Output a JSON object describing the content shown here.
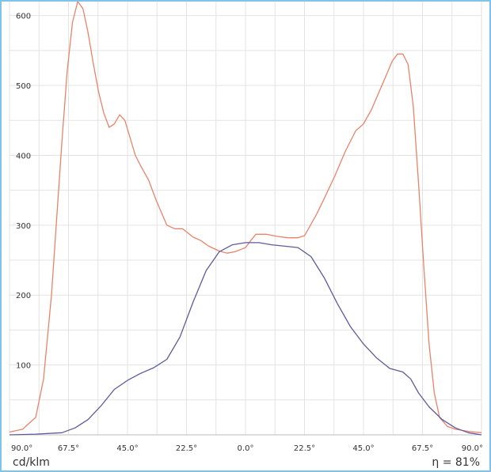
{
  "unit_label": "cd/klm",
  "efficiency_label": "η = 81%",
  "colors": {
    "grid": "#e3e3e3",
    "c0_c180": "#e8836a",
    "c90_c270": "#5f5a99",
    "frame": "#7ec3e8"
  },
  "chart_data": {
    "type": "line",
    "title": "",
    "xlabel": "",
    "ylabel": "cd/klm",
    "xlim": [
      -90,
      90
    ],
    "ylim": [
      0,
      620
    ],
    "grid": true,
    "legend": "none",
    "x_tick_labels": [
      "90.0°",
      "67.5°",
      "45.0°",
      "22.5°",
      "0.0°",
      "22.5°",
      "45.0°",
      "67.5°",
      "90.0°"
    ],
    "y_ticks": [
      100,
      200,
      300,
      400,
      500,
      600
    ],
    "series": [
      {
        "color": "#e8836a",
        "x": [
          -90,
          -85,
          -80,
          -77,
          -74,
          -72,
          -70,
          -68,
          -66,
          -64,
          -62,
          -60,
          -58,
          -56,
          -54,
          -52,
          -50,
          -48,
          -46,
          -44,
          -42,
          -40,
          -37,
          -34,
          -30,
          -27,
          -24,
          -20,
          -17,
          -14,
          -10,
          -7,
          -4,
          -2,
          0,
          2,
          4,
          8,
          12,
          16,
          20,
          22.5,
          24,
          27,
          30,
          34,
          38,
          42,
          45,
          48,
          52,
          56,
          58,
          60,
          62,
          64,
          66,
          68,
          70,
          72,
          74,
          77,
          80,
          85,
          90
        ],
        "values": [
          4,
          8,
          25,
          80,
          200,
          310,
          420,
          520,
          590,
          620,
          610,
          575,
          530,
          490,
          460,
          440,
          445,
          458,
          450,
          425,
          400,
          385,
          365,
          335,
          300,
          295,
          295,
          283,
          278,
          270,
          263,
          260,
          262,
          265,
          268,
          278,
          287,
          287,
          284,
          282,
          282,
          285,
          295,
          315,
          338,
          370,
          405,
          435,
          445,
          465,
          500,
          535,
          545,
          545,
          530,
          470,
          360,
          240,
          130,
          60,
          25,
          12,
          8,
          5,
          3
        ]
      },
      {
        "color": "#5f5a99",
        "x": [
          -90,
          -80,
          -70,
          -65,
          -60,
          -55,
          -50,
          -45,
          -40,
          -35,
          -30,
          -25,
          -20,
          -15,
          -10,
          -5,
          0,
          5,
          10,
          15,
          20,
          25,
          30,
          35,
          40,
          45,
          50,
          55,
          60,
          63,
          66,
          70,
          75,
          80,
          85,
          90
        ],
        "values": [
          0,
          1,
          3,
          10,
          22,
          42,
          65,
          78,
          88,
          96,
          108,
          140,
          190,
          235,
          262,
          272,
          275,
          275,
          272,
          270,
          268,
          255,
          225,
          188,
          155,
          130,
          110,
          95,
          90,
          80,
          60,
          40,
          22,
          10,
          3,
          0
        ]
      }
    ]
  }
}
